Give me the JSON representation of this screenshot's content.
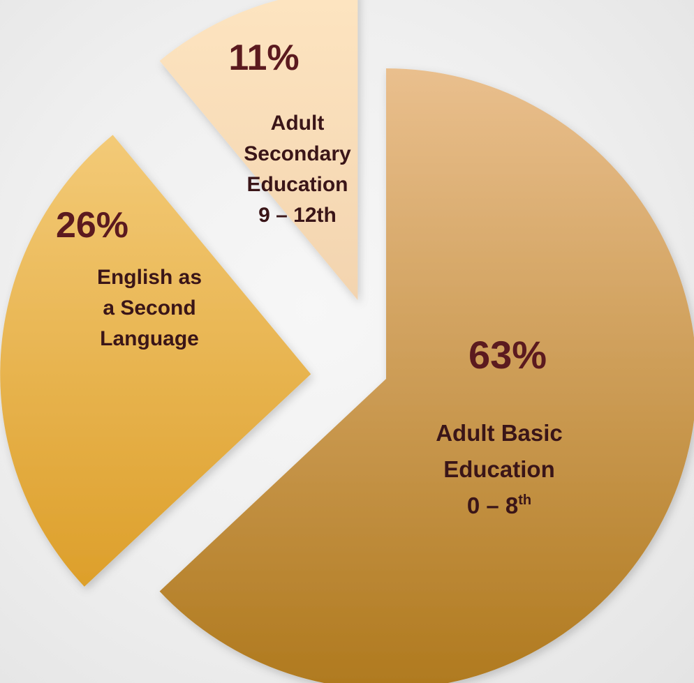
{
  "chart_data": {
    "type": "pie",
    "title": "",
    "slices": [
      {
        "label_lines": [
          "Adult Basic",
          "Education",
          "0 – 8"
        ],
        "label_sup": "th",
        "value": 63,
        "percent_label": "63%",
        "color_top": "#f0c79a",
        "color_bottom": "#b07a1f"
      },
      {
        "label_lines": [
          "English as",
          "a Second",
          "Language"
        ],
        "label_sup": "",
        "value": 26,
        "percent_label": "26%",
        "color_top": "#fad78e",
        "color_bottom": "#d8961a"
      },
      {
        "label_lines": [
          "Adult",
          "Secondary",
          "Education",
          "9 – 12th"
        ],
        "label_sup": "",
        "value": 11,
        "percent_label": "11%",
        "color_top": "#fde4c0",
        "color_bottom": "#e6c09a"
      }
    ],
    "label_color": "#5b1a1f",
    "category_color": "#3a1518"
  }
}
